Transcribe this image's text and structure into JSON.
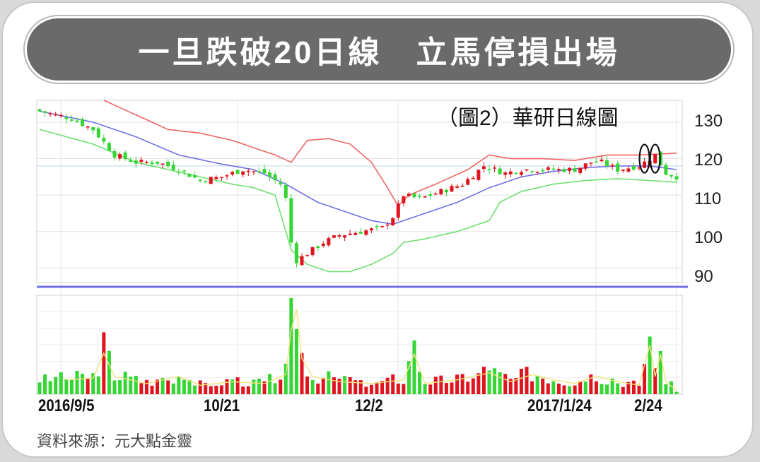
{
  "banner": {
    "title": "一旦跌破20日線　立馬停損出場"
  },
  "source": "資料來源：元大點金靈",
  "chart_data": {
    "type": "candlestick",
    "title": "（圖2）華研日線圖",
    "y_ticks": [
      "130",
      "120",
      "110",
      "100",
      "90"
    ],
    "y_tick_values": [
      130,
      120,
      110,
      100,
      90
    ],
    "ylim": [
      86,
      136
    ],
    "x_tick_labels": [
      "2016/9/5",
      "10/21",
      "12/2",
      "2017/1/24",
      "2/24"
    ],
    "x_tick_indices": [
      0,
      33,
      63,
      100,
      115
    ],
    "n_bars": 120,
    "colors": {
      "up": "#e0141e",
      "down": "#33d633",
      "ma20": "#6f6fe8",
      "upper_band": "#f06565",
      "lower_band": "#6fe06f",
      "volume_ma": "#f2e37a"
    },
    "anchors": {
      "close": [
        [
          0,
          133
        ],
        [
          6,
          131
        ],
        [
          10,
          128
        ],
        [
          14,
          121
        ],
        [
          18,
          119
        ],
        [
          22,
          119
        ],
        [
          26,
          117
        ],
        [
          30,
          114
        ],
        [
          34,
          115
        ],
        [
          38,
          117
        ],
        [
          42,
          116
        ],
        [
          45,
          113
        ],
        [
          46,
          109
        ],
        [
          47,
          97
        ],
        [
          48,
          92
        ],
        [
          50,
          94
        ],
        [
          53,
          97
        ],
        [
          56,
          99
        ],
        [
          60,
          100
        ],
        [
          64,
          101
        ],
        [
          66,
          104
        ],
        [
          68,
          110
        ],
        [
          71,
          109
        ],
        [
          75,
          111
        ],
        [
          79,
          113
        ],
        [
          83,
          118
        ],
        [
          87,
          116
        ],
        [
          90,
          117
        ],
        [
          93,
          117
        ],
        [
          96,
          117
        ],
        [
          100,
          117
        ],
        [
          103,
          119
        ],
        [
          105,
          119
        ],
        [
          108,
          117
        ],
        [
          112,
          118
        ],
        [
          114,
          120
        ],
        [
          115,
          121
        ],
        [
          117,
          116
        ],
        [
          119,
          115
        ]
      ],
      "ma20": [
        [
          0,
          133
        ],
        [
          10,
          130
        ],
        [
          18,
          126
        ],
        [
          26,
          121
        ],
        [
          34,
          118.5
        ],
        [
          40,
          117
        ],
        [
          46,
          113
        ],
        [
          52,
          108
        ],
        [
          58,
          105
        ],
        [
          62,
          103
        ],
        [
          66,
          102
        ],
        [
          70,
          104
        ],
        [
          78,
          108
        ],
        [
          84,
          112
        ],
        [
          90,
          115
        ],
        [
          96,
          116.5
        ],
        [
          102,
          117.5
        ],
        [
          108,
          118
        ],
        [
          114,
          118
        ],
        [
          119,
          117
        ]
      ],
      "upper_band": [
        [
          12,
          136
        ],
        [
          18,
          132
        ],
        [
          24,
          128
        ],
        [
          30,
          127
        ],
        [
          36,
          125
        ],
        [
          40,
          123
        ],
        [
          44,
          121
        ],
        [
          47,
          119
        ],
        [
          50,
          125
        ],
        [
          54,
          125.5
        ],
        [
          58,
          124
        ],
        [
          62,
          119
        ],
        [
          65,
          112
        ],
        [
          67,
          107
        ],
        [
          69,
          110
        ],
        [
          74,
          113
        ],
        [
          80,
          117
        ],
        [
          84,
          121
        ],
        [
          88,
          120
        ],
        [
          94,
          120
        ],
        [
          100,
          119.5
        ],
        [
          106,
          121
        ],
        [
          112,
          121
        ],
        [
          119,
          121.5
        ]
      ],
      "lower_band": [
        [
          0,
          128
        ],
        [
          10,
          124
        ],
        [
          18,
          119
        ],
        [
          24,
          117
        ],
        [
          30,
          115
        ],
        [
          36,
          113
        ],
        [
          40,
          112
        ],
        [
          44,
          110
        ],
        [
          47,
          95
        ],
        [
          50,
          91
        ],
        [
          54,
          89
        ],
        [
          58,
          89
        ],
        [
          62,
          91
        ],
        [
          66,
          94
        ],
        [
          68,
          97
        ],
        [
          72,
          98
        ],
        [
          78,
          100
        ],
        [
          84,
          103
        ],
        [
          86,
          108
        ],
        [
          90,
          111
        ],
        [
          96,
          113
        ],
        [
          102,
          114
        ],
        [
          108,
          114.5
        ],
        [
          114,
          114
        ],
        [
          119,
          113.5
        ]
      ],
      "volume": [
        [
          0,
          0.14
        ],
        [
          10,
          0.18
        ],
        [
          12,
          0.46
        ],
        [
          14,
          0.2
        ],
        [
          20,
          0.12
        ],
        [
          26,
          0.2
        ],
        [
          30,
          0.1
        ],
        [
          36,
          0.14
        ],
        [
          42,
          0.12
        ],
        [
          46,
          0.22
        ],
        [
          47,
          0.72
        ],
        [
          48,
          0.95
        ],
        [
          49,
          0.4
        ],
        [
          51,
          0.2
        ],
        [
          56,
          0.14
        ],
        [
          62,
          0.12
        ],
        [
          68,
          0.16
        ],
        [
          70,
          0.45
        ],
        [
          72,
          0.12
        ],
        [
          78,
          0.16
        ],
        [
          84,
          0.24
        ],
        [
          88,
          0.14
        ],
        [
          92,
          0.22
        ],
        [
          96,
          0.16
        ],
        [
          100,
          0.12
        ],
        [
          104,
          0.2
        ],
        [
          108,
          0.14
        ],
        [
          112,
          0.1
        ],
        [
          114,
          0.55
        ],
        [
          115,
          0.2
        ],
        [
          116,
          0.45
        ],
        [
          117,
          0.14
        ],
        [
          119,
          0.04
        ]
      ]
    },
    "highlight_ellipses_at": [
      113,
      115
    ],
    "has_volume_panel": true
  }
}
